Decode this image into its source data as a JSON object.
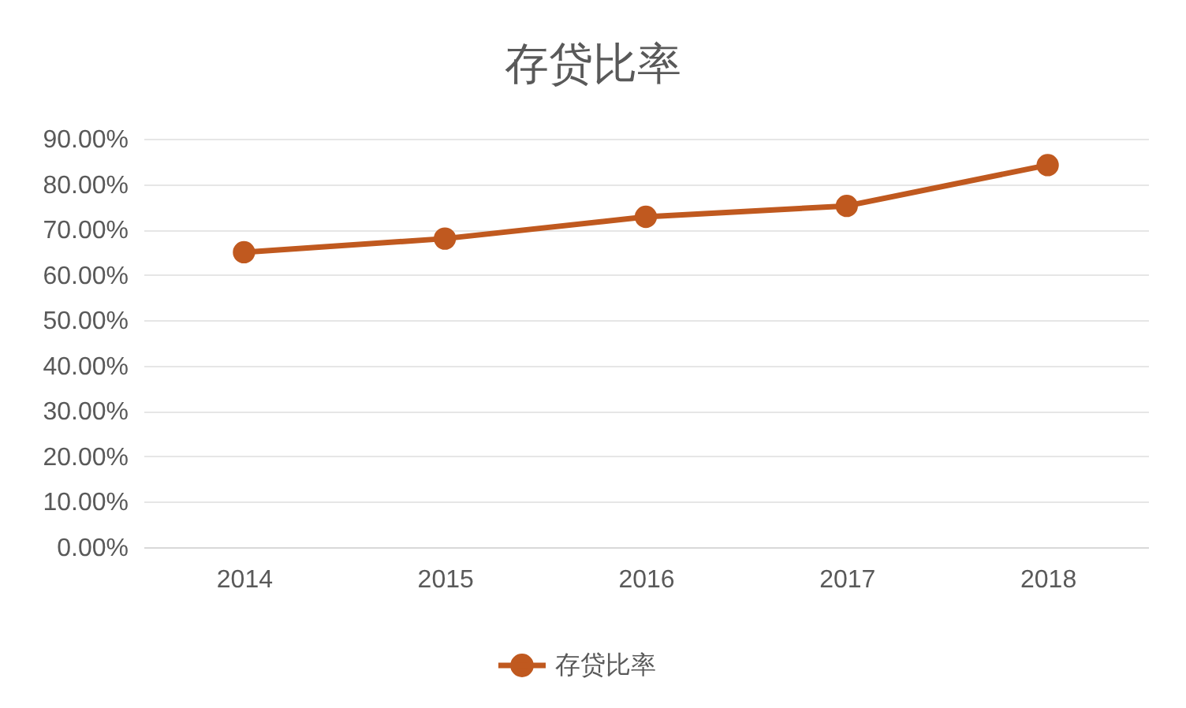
{
  "chart_data": {
    "type": "line",
    "title": "存贷比率",
    "categories": [
      "2014",
      "2015",
      "2016",
      "2017",
      "2018"
    ],
    "series": [
      {
        "name": "存贷比率",
        "color": "#c0591f",
        "values": [
          65,
          68,
          72.8,
          75.2,
          84.2
        ]
      }
    ],
    "ylim": [
      0,
      90
    ],
    "yticks": [
      {
        "value": 0,
        "label": "0.00%"
      },
      {
        "value": 10,
        "label": "10.00%"
      },
      {
        "value": 20,
        "label": "20.00%"
      },
      {
        "value": 30,
        "label": "30.00%"
      },
      {
        "value": 40,
        "label": "40.00%"
      },
      {
        "value": 50,
        "label": "50.00%"
      },
      {
        "value": 60,
        "label": "60.00%"
      },
      {
        "value": 70,
        "label": "70.00%"
      },
      {
        "value": 80,
        "label": "80.00%"
      },
      {
        "value": 90,
        "label": "90.00%"
      }
    ],
    "grid": "y",
    "legend": "bottom",
    "marker": "circle"
  }
}
